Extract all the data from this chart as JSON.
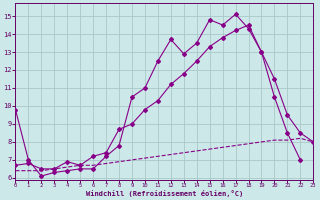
{
  "xlabel": "Windchill (Refroidissement éolien,°C)",
  "bg_color": "#cce8e8",
  "grid_color": "#aac8c8",
  "line_color": "#880088",
  "xlim": [
    0,
    23
  ],
  "ylim": [
    5.9,
    15.7
  ],
  "yticks": [
    6,
    7,
    8,
    9,
    10,
    11,
    12,
    13,
    14,
    15
  ],
  "xticks": [
    0,
    1,
    2,
    3,
    4,
    5,
    6,
    7,
    8,
    9,
    10,
    11,
    12,
    13,
    14,
    15,
    16,
    17,
    18,
    19,
    20,
    21,
    22,
    23
  ],
  "line1_x": [
    0,
    1,
    2,
    3,
    4,
    5,
    6,
    7,
    8,
    9,
    10,
    11,
    12,
    13,
    14,
    15,
    16,
    17,
    18,
    19,
    20,
    21,
    22
  ],
  "line1_y": [
    9.8,
    7.0,
    6.1,
    6.3,
    6.4,
    6.5,
    6.5,
    7.2,
    7.8,
    10.5,
    11.0,
    12.5,
    13.7,
    12.9,
    13.5,
    14.8,
    14.5,
    15.1,
    14.3,
    13.0,
    10.5,
    8.5,
    7.0
  ],
  "line2_x": [
    0,
    1,
    2,
    3,
    4,
    5,
    6,
    7,
    8,
    9,
    10,
    11,
    12,
    13,
    14,
    15,
    16,
    17,
    18,
    19,
    20,
    21,
    22,
    23
  ],
  "line2_y": [
    6.7,
    6.8,
    6.5,
    6.5,
    6.9,
    6.7,
    7.2,
    7.4,
    8.7,
    9.0,
    9.8,
    10.3,
    11.2,
    11.8,
    12.5,
    13.3,
    13.8,
    14.2,
    14.5,
    13.0,
    11.5,
    9.5,
    8.5,
    8.0
  ],
  "line3_x": [
    0,
    1,
    2,
    3,
    4,
    5,
    6,
    7,
    8,
    9,
    10,
    11,
    12,
    13,
    14,
    15,
    16,
    17,
    18,
    19,
    20,
    21,
    22,
    23
  ],
  "line3_y": [
    6.4,
    6.4,
    6.4,
    6.5,
    6.6,
    6.7,
    6.7,
    6.8,
    6.9,
    7.0,
    7.1,
    7.2,
    7.3,
    7.4,
    7.5,
    7.6,
    7.7,
    7.8,
    7.9,
    8.0,
    8.1,
    8.1,
    8.2,
    8.0
  ]
}
